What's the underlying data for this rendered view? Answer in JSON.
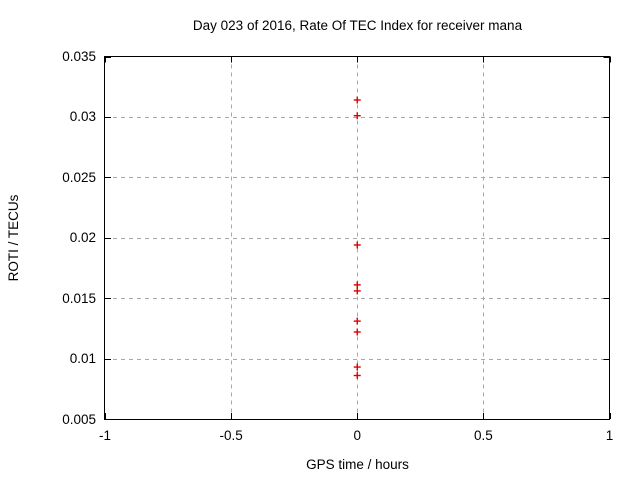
{
  "chart_data": {
    "type": "scatter",
    "title": "Day 023 of 2016, Rate Of TEC Index for receiver mana",
    "xlabel": "GPS time / hours",
    "ylabel": "ROTI / TECUs",
    "xlim": [
      -1,
      1
    ],
    "ylim": [
      0.005,
      0.035
    ],
    "xticks": {
      "values": [
        -1,
        -0.5,
        0,
        0.5,
        1
      ],
      "labels": [
        "-1",
        "-0.5",
        "0",
        "0.5",
        "1"
      ]
    },
    "yticks": {
      "values": [
        0.005,
        0.01,
        0.015,
        0.02,
        0.025,
        0.03,
        0.035
      ],
      "labels": [
        "0.005",
        "0.01",
        "0.015",
        "0.02",
        "0.025",
        "0.03",
        "0.035"
      ]
    },
    "grid": true,
    "legend_position": "none",
    "series": [
      {
        "name": "ROTI",
        "marker": "plus",
        "color": "#e00000",
        "points": [
          {
            "x": 0,
            "y": 0.0314
          },
          {
            "x": 0,
            "y": 0.0301
          },
          {
            "x": 0,
            "y": 0.0194
          },
          {
            "x": 0,
            "y": 0.0161
          },
          {
            "x": 0,
            "y": 0.0156
          },
          {
            "x": 0,
            "y": 0.0131
          },
          {
            "x": 0,
            "y": 0.0122
          },
          {
            "x": 0,
            "y": 0.0093
          },
          {
            "x": 0,
            "y": 0.0086
          }
        ]
      }
    ],
    "colors": {
      "background": "#ffffff",
      "grid": "#a8a8a8",
      "axis": "#000000",
      "text": "#000000"
    }
  }
}
